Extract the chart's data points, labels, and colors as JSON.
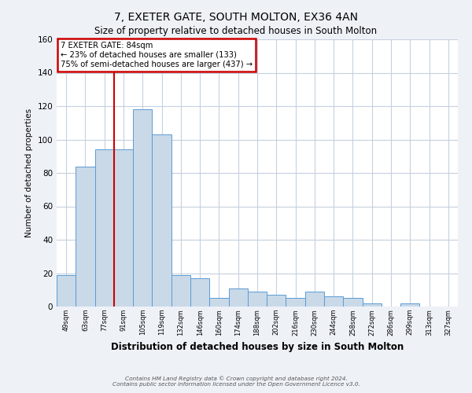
{
  "title": "7, EXETER GATE, SOUTH MOLTON, EX36 4AN",
  "subtitle": "Size of property relative to detached houses in South Molton",
  "xlabel": "Distribution of detached houses by size in South Molton",
  "ylabel": "Number of detached properties",
  "bin_labels": [
    "49sqm",
    "63sqm",
    "77sqm",
    "91sqm",
    "105sqm",
    "119sqm",
    "132sqm",
    "146sqm",
    "160sqm",
    "174sqm",
    "188sqm",
    "202sqm",
    "216sqm",
    "230sqm",
    "244sqm",
    "258sqm",
    "272sqm",
    "286sqm",
    "299sqm",
    "313sqm",
    "327sqm"
  ],
  "bar_heights": [
    19,
    84,
    94,
    94,
    118,
    103,
    19,
    17,
    5,
    11,
    9,
    7,
    5,
    9,
    6,
    5,
    2,
    0,
    2,
    0,
    0
  ],
  "bar_color": "#c9d9e8",
  "bar_edge_color": "#5b9bd5",
  "vline_x": 3.0,
  "annotation_line1": "7 EXETER GATE: 84sqm",
  "annotation_line2": "← 23% of detached houses are smaller (133)",
  "annotation_line3": "75% of semi-detached houses are larger (437) →",
  "annotation_box_color": "#cc0000",
  "vline_color": "#cc0000",
  "ylim": [
    0,
    160
  ],
  "yticks": [
    0,
    20,
    40,
    60,
    80,
    100,
    120,
    140,
    160
  ],
  "footer_line1": "Contains HM Land Registry data © Crown copyright and database right 2024.",
  "footer_line2": "Contains public sector information licensed under the Open Government Licence v3.0.",
  "bg_color": "#eef2f7",
  "plot_bg_color": "#ffffff",
  "grid_color": "#c5d0de"
}
